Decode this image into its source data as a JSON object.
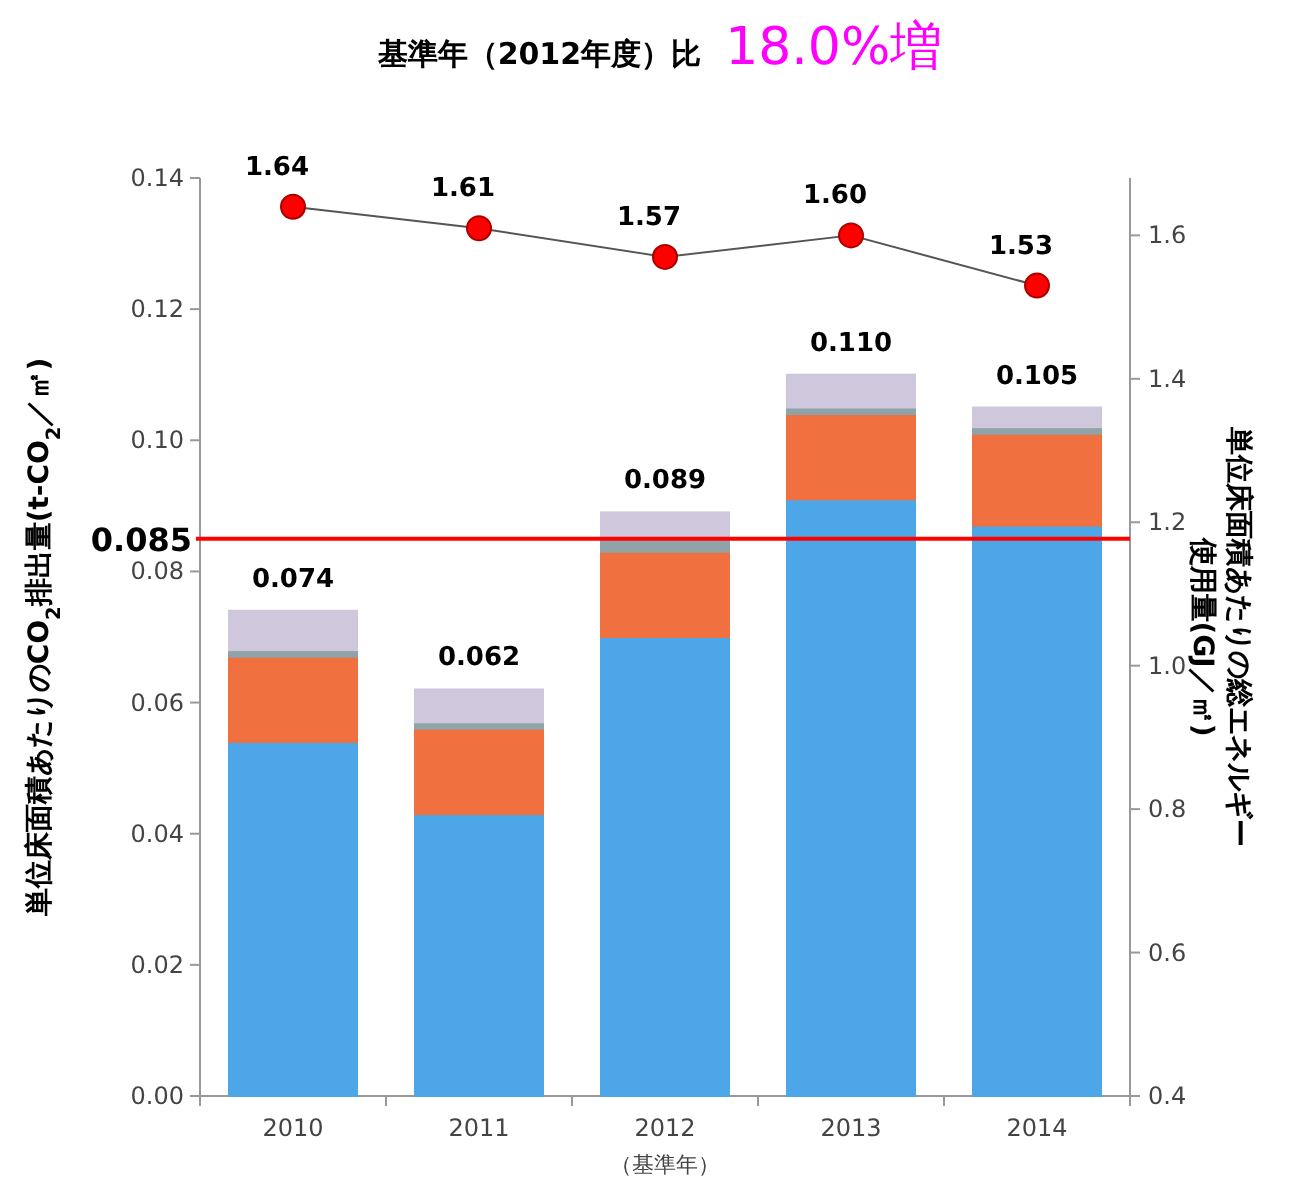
{
  "chart_data": {
    "type": "bar",
    "stacked": true,
    "title": "基準年（2012年度）比",
    "subtitle": "18.0%増",
    "ylabel": "単位床面積あたりのCO$_{2}$排出量(t-CO$_{2}$／㎡)",
    "y2label": "単位床面積あたりの総エネルギー使用量(GJ／㎡)",
    "categories": [
      "2010",
      "2011",
      "2012",
      "2013",
      "2014"
    ],
    "series": [
      {
        "color": "#4da6e8",
        "values": [
          0.054,
          0.043,
          0.07,
          0.091,
          0.087
        ]
      },
      {
        "color": "#f07040",
        "values": [
          0.013,
          0.013,
          0.013,
          0.013,
          0.014
        ]
      },
      {
        "color": "#8fa3a8",
        "values": [
          0.001,
          0.001,
          0.002,
          0.001,
          0.001
        ]
      },
      {
        "color": "#cfc8dc",
        "values": [
          0.006,
          0.005,
          0.004,
          0.005,
          0.003
        ]
      },
      {
        "type": "line",
        "axis": "y2",
        "color": "#ff0000",
        "marker": "circle",
        "values": [
          1.64,
          1.61,
          1.57,
          1.6,
          1.53
        ],
        "value_labels": [
          "1.64",
          "1.61",
          "1.57",
          "1.60",
          "1.53"
        ]
      }
    ],
    "totals": [
      "0.074",
      "0.062",
      "0.089",
      "0.110",
      "0.105"
    ],
    "ref_lines": [
      {
        "axis": "y",
        "value": 0.085,
        "label": "0.085",
        "color": "#ff0000"
      }
    ],
    "annotations": [
      "（基準年）"
    ],
    "ylim": [
      0,
      0.14
    ],
    "yticks": [
      {
        "value": 0,
        "label": "0.00"
      },
      {
        "value": 0.02,
        "label": "0.02"
      },
      {
        "value": 0.04,
        "label": "0.04"
      },
      {
        "value": 0.06,
        "label": "0.06"
      },
      {
        "value": 0.08,
        "label": "0.08"
      },
      {
        "value": 0.1,
        "label": "0.10"
      },
      {
        "value": 0.12,
        "label": "0.12"
      },
      {
        "value": 0.14,
        "label": "0.14"
      }
    ],
    "y2lim": [
      0.4,
      1.68
    ],
    "y2ticks": [
      0.4,
      0.6,
      0.8,
      {
        "value": 1,
        "label": "1.0"
      },
      1.2,
      1.4,
      1.6
    ],
    "grid": false
  }
}
